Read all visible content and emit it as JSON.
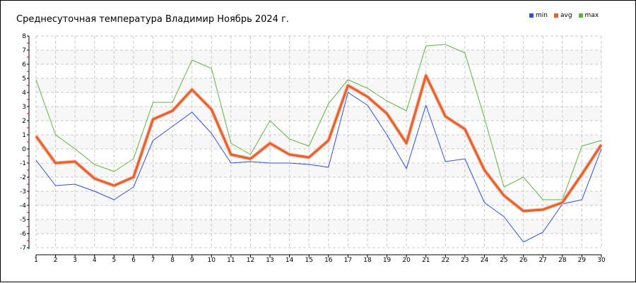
{
  "chart_data": {
    "type": "line",
    "title": "Среднесуточная температура Владимир  Ноябрь 2024 г.",
    "xlabel": "",
    "ylabel": "",
    "x": [
      1,
      2,
      3,
      4,
      5,
      6,
      7,
      8,
      9,
      10,
      11,
      12,
      13,
      14,
      15,
      16,
      17,
      18,
      19,
      20,
      21,
      22,
      23,
      24,
      25,
      26,
      27,
      28,
      29,
      30
    ],
    "ylim": [
      -7,
      8
    ],
    "yticks": [
      8,
      7,
      6,
      5,
      4,
      3,
      2,
      1,
      0,
      -1,
      -2,
      -3,
      -4,
      -5,
      -6,
      -7
    ],
    "grid": true,
    "legend_position": "top-right",
    "series": [
      {
        "name": "min",
        "color": "#2b4ee8",
        "values": [
          -0.8,
          -2.6,
          -2.5,
          -3.0,
          -3.6,
          -2.7,
          0.6,
          1.6,
          2.6,
          1.1,
          -1.0,
          -0.9,
          -1.0,
          -1.0,
          -1.1,
          -1.3,
          4.0,
          3.1,
          1.0,
          -1.4,
          3.1,
          -0.9,
          -0.7,
          -3.8,
          -4.8,
          -6.6,
          -5.9,
          -3.9,
          -3.6,
          0.0
        ]
      },
      {
        "name": "avg",
        "color": "#e8602c",
        "values": [
          0.9,
          -1.0,
          -0.9,
          -2.1,
          -2.6,
          -2.0,
          2.1,
          2.7,
          4.2,
          2.8,
          -0.4,
          -0.7,
          0.4,
          -0.4,
          -0.6,
          0.6,
          4.5,
          3.7,
          2.5,
          0.4,
          5.2,
          2.3,
          1.4,
          -1.5,
          -3.3,
          -4.4,
          -4.3,
          -3.8,
          -1.8,
          0.3
        ]
      },
      {
        "name": "max",
        "color": "#5db53a",
        "values": [
          4.9,
          1.0,
          0.0,
          -1.1,
          -1.6,
          -0.7,
          3.3,
          3.3,
          6.3,
          5.7,
          0.4,
          -0.4,
          2.0,
          0.7,
          0.2,
          3.2,
          4.9,
          4.3,
          3.4,
          2.7,
          7.3,
          7.4,
          6.8,
          2.2,
          -2.7,
          -2.0,
          -3.6,
          -3.6,
          0.2,
          0.6
        ]
      }
    ]
  }
}
